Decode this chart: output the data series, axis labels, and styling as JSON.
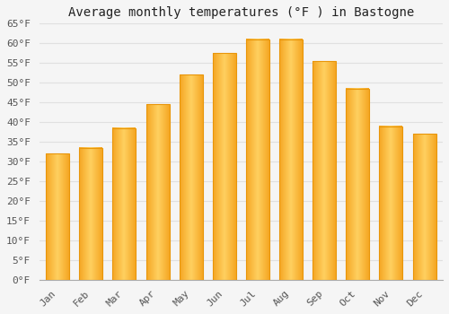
{
  "title": "Average monthly temperatures (°F ) in Bastogne",
  "months": [
    "Jan",
    "Feb",
    "Mar",
    "Apr",
    "May",
    "Jun",
    "Jul",
    "Aug",
    "Sep",
    "Oct",
    "Nov",
    "Dec"
  ],
  "values": [
    32.0,
    33.5,
    38.5,
    44.5,
    52.0,
    57.5,
    61.0,
    61.0,
    55.5,
    48.5,
    39.0,
    37.0
  ],
  "bar_color_left": "#F5A623",
  "bar_color_center": "#FFD060",
  "bar_color_right": "#F5A623",
  "bar_edge_color": "#E8960A",
  "ylim": [
    0,
    65
  ],
  "yticks": [
    0,
    5,
    10,
    15,
    20,
    25,
    30,
    35,
    40,
    45,
    50,
    55,
    60,
    65
  ],
  "ytick_labels": [
    "0°F",
    "5°F",
    "10°F",
    "15°F",
    "20°F",
    "25°F",
    "30°F",
    "35°F",
    "40°F",
    "45°F",
    "50°F",
    "55°F",
    "60°F",
    "65°F"
  ],
  "background_color": "#f5f5f5",
  "plot_bg_color": "#f5f5f5",
  "grid_color": "#e0e0e0",
  "title_fontsize": 10,
  "tick_fontsize": 8,
  "font_family": "monospace"
}
